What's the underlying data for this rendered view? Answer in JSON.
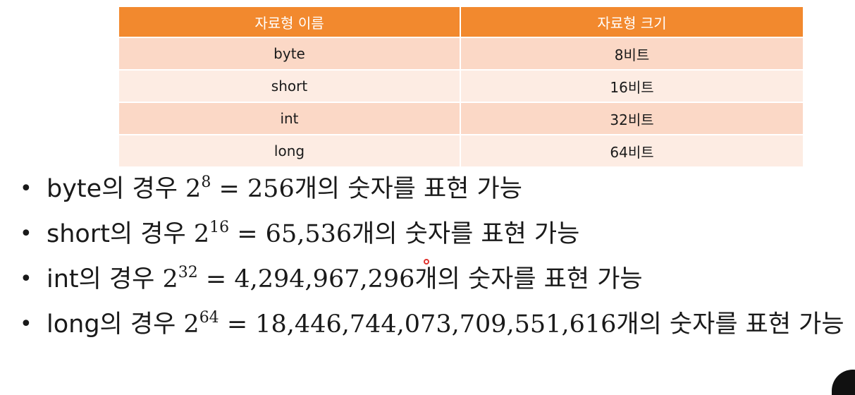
{
  "table": {
    "headers": [
      "자료형 이름",
      "자료형 크기"
    ],
    "rows": [
      [
        "byte",
        "8비트"
      ],
      [
        "short",
        "16비트"
      ],
      [
        "int",
        "32비트"
      ],
      [
        "long",
        "64비트"
      ]
    ],
    "colors": {
      "header_bg": "#f2892e",
      "row_odd_bg": "#fbd8c6",
      "row_even_bg": "#fdece3"
    }
  },
  "bullets": [
    {
      "type": "byte",
      "prefix": "의 경우 ",
      "base": "2",
      "exp": "8",
      "eq": " = ",
      "count": "256",
      "suffix": "개의 숫자를 표현 가능"
    },
    {
      "type": "short",
      "prefix": "의 경우 ",
      "base": "2",
      "exp": "16",
      "eq": " = ",
      "count": "65,536",
      "suffix": "개의 숫자를 표현 가능"
    },
    {
      "type": "int",
      "prefix": "의 경우 ",
      "base": "2",
      "exp": "32",
      "eq": " = ",
      "count": "4,294,967,296",
      "suffix": "개의 숫자를 표현 가능"
    },
    {
      "type": "long",
      "prefix": "의 경우 ",
      "base": "2",
      "exp": "64",
      "eq": " = ",
      "count": "18,446,744,073,709,551,616",
      "suffix": "개의 숫자를 표현 가능"
    }
  ],
  "bullet_glyph": "•",
  "cursor_color": "#e0332e"
}
